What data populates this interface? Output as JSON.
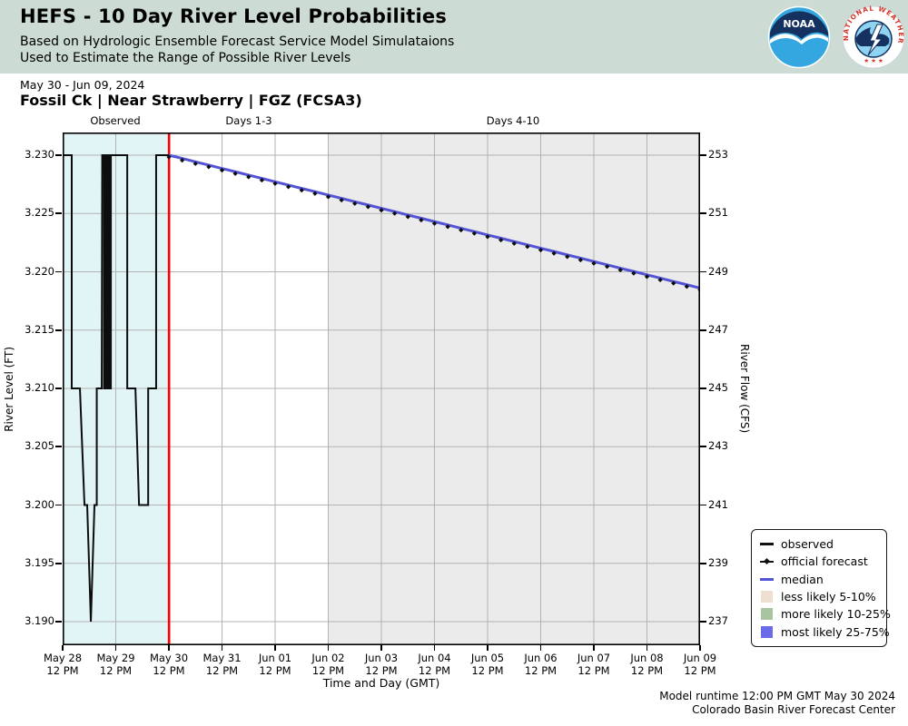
{
  "header": {
    "title": "HEFS - 10 Day River Level Probabilities",
    "subtitle_line1": "Based on Hydrologic Ensemble Forecast Service Model Simulataions",
    "subtitle_line2": "Used to Estimate the Range of Possible River Levels",
    "bg_color": "#ccdbd3"
  },
  "logos": {
    "noaa_text": "NOAA",
    "nws_ring_text": "NATIONAL WEATHER SERVICE",
    "nws_stars": "★ ★ ★"
  },
  "meta": {
    "date_range": "May 30 - Jun 09, 2024",
    "station": "Fossil Ck | Near Strawberry | FGZ (FCSA3)"
  },
  "chart_data": {
    "type": "line",
    "xlabel": "Time and Day (GMT)",
    "ylabel_left": "River Level (FT)",
    "ylabel_right": "River Flow (CFS)",
    "x_range_days": [
      0,
      12
    ],
    "ylim_left": [
      3.19,
      3.23
    ],
    "ylim_right": [
      237,
      253
    ],
    "grid": true,
    "left_tick_labels": [
      "3.230",
      "3.225",
      "3.220",
      "3.215",
      "3.210",
      "3.205",
      "3.200",
      "3.195",
      "3.190"
    ],
    "left_tick_values": [
      3.23,
      3.225,
      3.22,
      3.215,
      3.21,
      3.205,
      3.2,
      3.195,
      3.19
    ],
    "right_tick_labels": [
      "253",
      "251",
      "249",
      "247",
      "245",
      "243",
      "241",
      "239",
      "237"
    ],
    "x_ticks": [
      {
        "t": 0,
        "date": "May 28",
        "time": "12 PM"
      },
      {
        "t": 1,
        "date": "May 29",
        "time": "12 PM"
      },
      {
        "t": 2,
        "date": "May 30",
        "time": "12 PM"
      },
      {
        "t": 3,
        "date": "May 31",
        "time": "12 PM"
      },
      {
        "t": 4,
        "date": "Jun 01",
        "time": "12 PM"
      },
      {
        "t": 5,
        "date": "Jun 02",
        "time": "12 PM"
      },
      {
        "t": 6,
        "date": "Jun 03",
        "time": "12 PM"
      },
      {
        "t": 7,
        "date": "Jun 04",
        "time": "12 PM"
      },
      {
        "t": 8,
        "date": "Jun 05",
        "time": "12 PM"
      },
      {
        "t": 9,
        "date": "Jun 06",
        "time": "12 PM"
      },
      {
        "t": 10,
        "date": "Jun 07",
        "time": "12 PM"
      },
      {
        "t": 11,
        "date": "Jun 08",
        "time": "12 PM"
      },
      {
        "t": 12,
        "date": "Jun 09",
        "time": "12 PM"
      }
    ],
    "regions": [
      {
        "label": "Observed",
        "t0": 0,
        "t1": 2.003,
        "color": "#e1f5f6"
      },
      {
        "label": "Days 1-3",
        "t0": 2.003,
        "t1": 5,
        "color": "#ffffff"
      },
      {
        "label": "Days 4-10",
        "t0": 5,
        "t1": 12,
        "color": "#ebebeb"
      }
    ],
    "runtime_line": {
      "t": 2.003,
      "color": "#ff0000"
    },
    "grid_color": "#b3b3b3",
    "series": [
      {
        "name": "observed",
        "color": "#0d0d0d",
        "style": "step-line",
        "points": [
          [
            0,
            3.23
          ],
          [
            0.171,
            3.23
          ],
          [
            0.171,
            3.21
          ],
          [
            0.325,
            3.21
          ],
          [
            0.411,
            3.2
          ],
          [
            0.462,
            3.2
          ],
          [
            0.531,
            3.19
          ],
          [
            0.599,
            3.2
          ],
          [
            0.642,
            3.2
          ],
          [
            0.642,
            3.21
          ],
          [
            0.736,
            3.21
          ],
          [
            0.745,
            3.23
          ],
          [
            0.779,
            3.23
          ],
          [
            0.779,
            3.21
          ],
          [
            0.805,
            3.21
          ],
          [
            0.805,
            3.23
          ],
          [
            0.83,
            3.23
          ],
          [
            0.83,
            3.21
          ],
          [
            0.856,
            3.21
          ],
          [
            0.856,
            3.23
          ],
          [
            0.882,
            3.23
          ],
          [
            0.882,
            3.21
          ],
          [
            0.908,
            3.21
          ],
          [
            0.908,
            3.23
          ],
          [
            1.216,
            3.23
          ],
          [
            1.216,
            3.21
          ],
          [
            1.37,
            3.21
          ],
          [
            1.438,
            3.2
          ],
          [
            1.61,
            3.2
          ],
          [
            1.61,
            3.21
          ],
          [
            1.76,
            3.21
          ],
          [
            1.76,
            3.23
          ],
          [
            2.003,
            3.23
          ]
        ]
      },
      {
        "name": "median",
        "color": "#5353d6",
        "style": "line",
        "points": [
          [
            2.0,
            3.23
          ],
          [
            2.25,
            3.22972
          ],
          [
            2.5,
            3.22943
          ],
          [
            2.75,
            3.22915
          ],
          [
            3.0,
            3.22886
          ],
          [
            3.25,
            3.22858
          ],
          [
            3.5,
            3.22829
          ],
          [
            3.75,
            3.22801
          ],
          [
            4.0,
            3.22772
          ],
          [
            4.25,
            3.22744
          ],
          [
            4.5,
            3.22715
          ],
          [
            4.75,
            3.22687
          ],
          [
            5.0,
            3.22658
          ],
          [
            5.25,
            3.2263
          ],
          [
            5.5,
            3.22601
          ],
          [
            5.75,
            3.22573
          ],
          [
            6.0,
            3.22544
          ],
          [
            6.25,
            3.22516
          ],
          [
            6.5,
            3.22487
          ],
          [
            6.75,
            3.22459
          ],
          [
            7.0,
            3.2243
          ],
          [
            7.25,
            3.22402
          ],
          [
            7.5,
            3.22373
          ],
          [
            7.75,
            3.22345
          ],
          [
            8.0,
            3.22316
          ],
          [
            8.25,
            3.22288
          ],
          [
            8.5,
            3.22259
          ],
          [
            8.75,
            3.22231
          ],
          [
            9.0,
            3.22202
          ],
          [
            9.25,
            3.22174
          ],
          [
            9.5,
            3.22145
          ],
          [
            9.75,
            3.22117
          ],
          [
            10.0,
            3.22088
          ],
          [
            10.25,
            3.2206
          ],
          [
            10.5,
            3.22031
          ],
          [
            10.75,
            3.22003
          ],
          [
            11.0,
            3.21974
          ],
          [
            11.25,
            3.21946
          ],
          [
            11.5,
            3.21917
          ],
          [
            11.75,
            3.21889
          ],
          [
            12.0,
            3.2186
          ]
        ]
      },
      {
        "name": "official forecast",
        "color": "#0d0d0d",
        "style": "diamond-markers",
        "points": "same-as-median"
      }
    ]
  },
  "legend": {
    "items": [
      {
        "label": "observed",
        "swatch": "line",
        "color": "#111111"
      },
      {
        "label": "official forecast",
        "swatch": "line-diamond",
        "color": "#111111"
      },
      {
        "label": "median",
        "swatch": "line",
        "color": "#5353d6"
      },
      {
        "label": "less likely 5-10%",
        "swatch": "box",
        "color": "#ede0d0"
      },
      {
        "label": "more likely 10-25%",
        "swatch": "box",
        "color": "#a9c4a1"
      },
      {
        "label": "most likely 25-75%",
        "swatch": "box",
        "color": "#6b6bea"
      }
    ]
  },
  "footer": {
    "line1": "Model runtime 12:00 PM GMT May 30 2024",
    "line2": "Colorado Basin River Forecast Center"
  }
}
